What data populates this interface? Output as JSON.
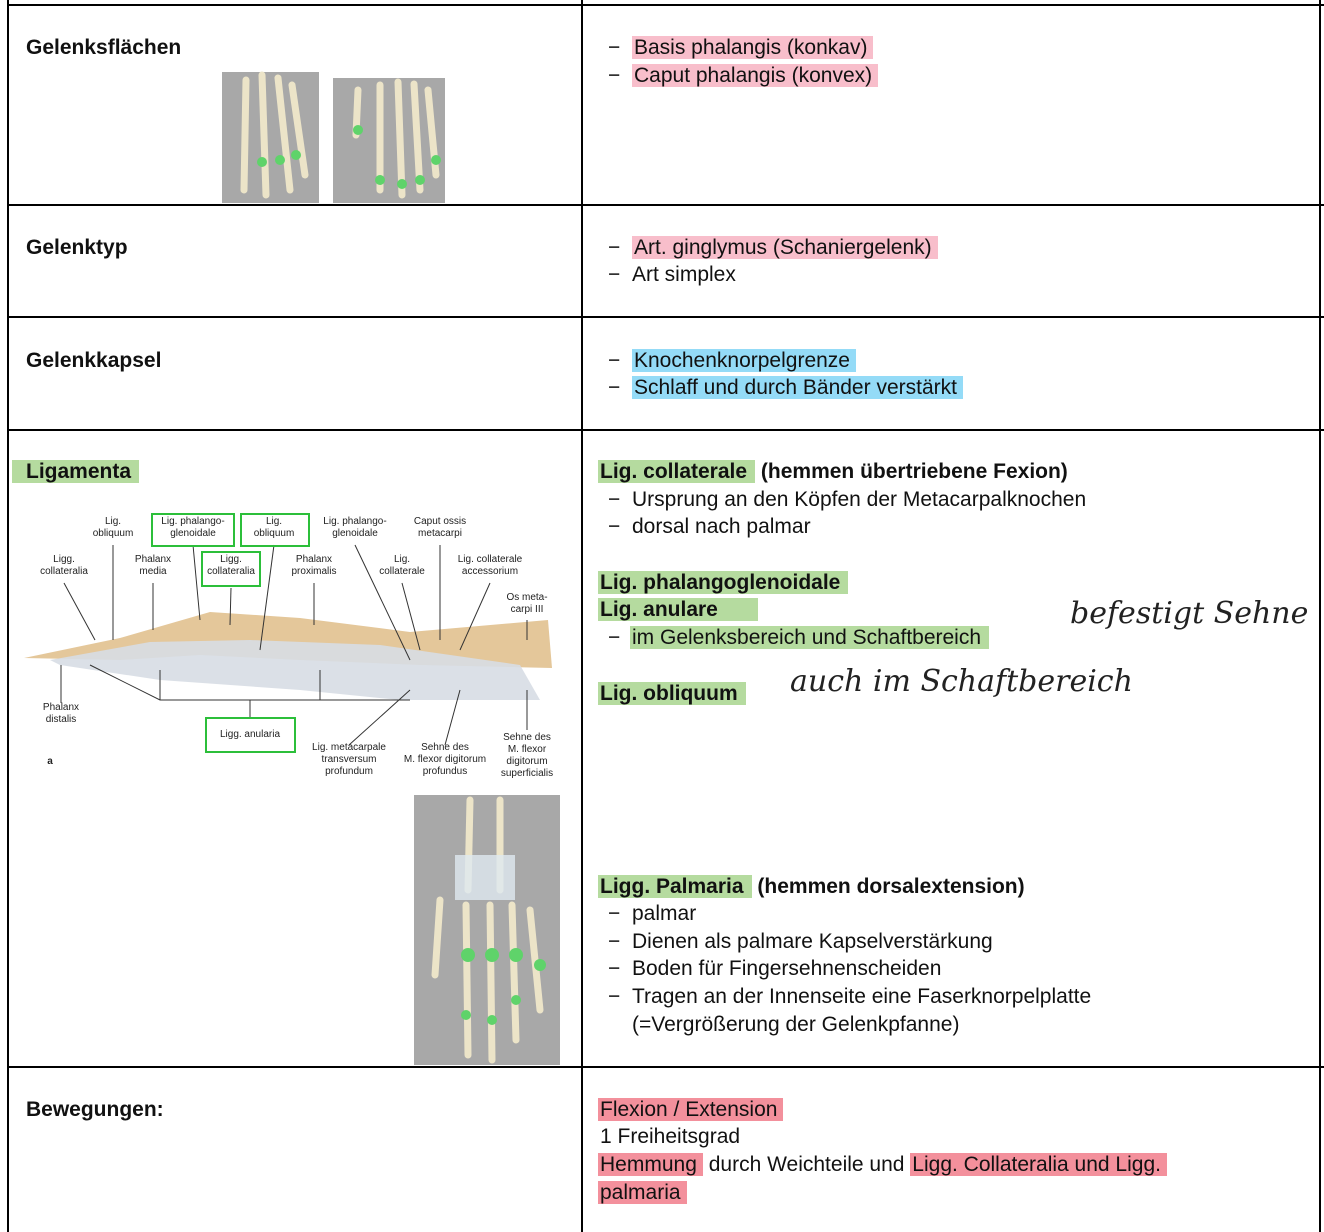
{
  "table": {
    "rows": [
      {
        "label": "Gelenksflächen",
        "items": [
          "Basis phalangis (konkav)",
          "Caput phalangis (konvex)"
        ]
      },
      {
        "label": "Gelenktyp",
        "items": [
          "Art. ginglymus (Schaniergelenk)",
          "Art simplex"
        ]
      },
      {
        "label": "Gelenkkapsel",
        "items": [
          "Knochenknorpelgrenze",
          "Schlaff und durch Bänder verstärkt"
        ]
      },
      {
        "label": "Ligamenta",
        "groups": [
          {
            "heading": "Lig. collaterale",
            "note": "(hemmen übertriebene Fexion)",
            "items": [
              "Ursprung an den Köpfen der Metacarpalknochen",
              "dorsal nach palmar"
            ]
          },
          {
            "heading": "Lig. phalangoglenoidale"
          },
          {
            "heading": "Lig. anulare",
            "items": [
              "im Gelenksbereich und Schaftbereich"
            ],
            "handwritten": "befestigt Sehne"
          },
          {
            "heading": "Lig. obliquum",
            "handwritten": "auch im Schaftbereich"
          },
          {
            "heading": "Ligg. Palmaria",
            "note": "(hemmen dorsalextension)",
            "items": [
              "palmar",
              "Dienen als palmare Kapselverstärkung",
              "Boden für Fingersehnenscheiden",
              "Tragen an der Innenseite eine Faserknorpelplatte",
              "(=Vergrößerung der Gelenkpfanne)"
            ]
          }
        ]
      },
      {
        "label": "Bewegungen:",
        "lines": [
          [
            "Flexion / Extension"
          ],
          [
            "1 Freiheitsgrad"
          ],
          [
            "Hemmung",
            "durch Weichteile und",
            "Ligg. Collateralia und Ligg."
          ],
          [
            "palmaria"
          ]
        ]
      }
    ]
  },
  "figure": {
    "labels": [
      [
        "Lig.",
        "obliquum"
      ],
      [
        "Lig. phalango-",
        "glenoidale"
      ],
      [
        "Lig.",
        "obliquum"
      ],
      [
        "Lig. phalango-",
        "glenoidale"
      ],
      [
        "Caput ossis",
        "metacarpi"
      ],
      [
        "Ligg.",
        "collateralia"
      ],
      [
        "Phalanx",
        "media"
      ],
      [
        "Ligg.",
        "collateralia"
      ],
      [
        "Phalanx",
        "proximalis"
      ],
      [
        "Lig.",
        "collaterale"
      ],
      [
        "Lig. collaterale",
        "accessorium"
      ],
      [
        "Os meta-",
        "carpi III"
      ],
      [
        "Phalanx",
        "distalis"
      ],
      [
        "Ligg. anularia"
      ],
      [
        "Lig. metacarpale",
        "transversum",
        "profundum"
      ],
      [
        "Sehne des",
        "M. flexor digitorum",
        "profundus"
      ],
      [
        "Sehne des",
        "M. flexor",
        "digitorum",
        "superficialis"
      ],
      [
        "a"
      ]
    ]
  }
}
